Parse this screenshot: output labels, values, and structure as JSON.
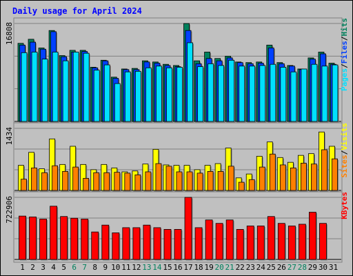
{
  "chart_data": {
    "type": "bar",
    "title": "Daily usage for April 2024",
    "categories": [
      "1",
      "2",
      "3",
      "4",
      "5",
      "6",
      "7",
      "8",
      "9",
      "10",
      "11",
      "12",
      "13",
      "14",
      "15",
      "16",
      "17",
      "18",
      "19",
      "20",
      "21",
      "22",
      "23",
      "24",
      "25",
      "26",
      "27",
      "28",
      "29",
      "30",
      "31"
    ],
    "weekend_days": [
      "6",
      "7",
      "13",
      "14",
      "20",
      "21",
      "27",
      "28"
    ],
    "panels": [
      {
        "name": "pages-files-hits",
        "ymax_label": "16808",
        "ylim": [
          0,
          16808
        ],
        "axis_label_parts": [
          "Pages",
          "Files",
          "Hits"
        ],
        "series": [
          {
            "name": "Hits",
            "values": [
              13400,
              14100,
              12600,
              15600,
              11300,
              12200,
              12200,
              9300,
              10500,
              7600,
              9000,
              9100,
              10400,
              10200,
              9800,
              9600,
              16800,
              10400,
              11900,
              10800,
              11200,
              10200,
              10100,
              10200,
              13100,
              10100,
              9600,
              9000,
              10900,
              11900,
              10000
            ]
          },
          {
            "name": "Files",
            "values": [
              13100,
              13600,
              12400,
              15400,
              11100,
              11900,
              12000,
              9200,
              10400,
              7400,
              8900,
              8900,
              10200,
              10000,
              9600,
              9400,
              15600,
              9900,
              10800,
              10400,
              10900,
              10100,
              9900,
              10000,
              12600,
              9900,
              9500,
              8900,
              10700,
              11600,
              9800
            ]
          },
          {
            "name": "Pages",
            "values": [
              11800,
              11900,
              10700,
              11900,
              10400,
              11900,
              11700,
              8800,
              9700,
              6500,
              8500,
              8600,
              9200,
              9500,
              9200,
              9300,
              13500,
              9400,
              9900,
              9600,
              10500,
              9500,
              9500,
              9600,
              9800,
              9300,
              8500,
              9000,
              9800,
              9500,
              9700
            ]
          }
        ]
      },
      {
        "name": "visits-sites",
        "ymax_label": "1434",
        "ylim": [
          0,
          1434
        ],
        "axis_label_parts": [
          "Sites",
          "Visits"
        ],
        "series": [
          {
            "name": "Visits",
            "values": [
              580,
              880,
              500,
              1190,
              600,
              1020,
              600,
              480,
              600,
              520,
              430,
              450,
              610,
              950,
              590,
              580,
              580,
              480,
              580,
              620,
              980,
              290,
              380,
              790,
              1120,
              760,
              650,
              810,
              850,
              1350,
              1020
            ]
          },
          {
            "name": "Sites",
            "values": [
              260,
              520,
              410,
              570,
              440,
              540,
              280,
              410,
              410,
              420,
              400,
              360,
              430,
              620,
              560,
              430,
              430,
              400,
              440,
              440,
              560,
              190,
              250,
              540,
              840,
              590,
              520,
              630,
              610,
              940,
              730
            ]
          }
        ]
      },
      {
        "name": "kbytes",
        "ymax_label": "722906",
        "ylim": [
          0,
          722906
        ],
        "axis_label_parts": [
          "KBytes"
        ],
        "series": [
          {
            "name": "KBytes",
            "values": [
              505000,
              495000,
              470000,
              620000,
              500000,
              480000,
              470000,
              320000,
              400000,
              310000,
              370000,
              370000,
              400000,
              370000,
              350000,
              350000,
              722906,
              370000,
              460000,
              420000,
              460000,
              350000,
              390000,
              390000,
              500000,
              420000,
              390000,
              410000,
              550000,
              420000,
              0
            ]
          }
        ]
      }
    ],
    "colors": {
      "hits": "#00805c",
      "files": "#0040ff",
      "pages": "#00e0ff",
      "visits": "#ffff00",
      "sites": "#ff8000",
      "kbytes": "#ff0000",
      "title": "#0000ff",
      "weekday_label": "#000000",
      "weekend_label": "#00805c"
    }
  }
}
